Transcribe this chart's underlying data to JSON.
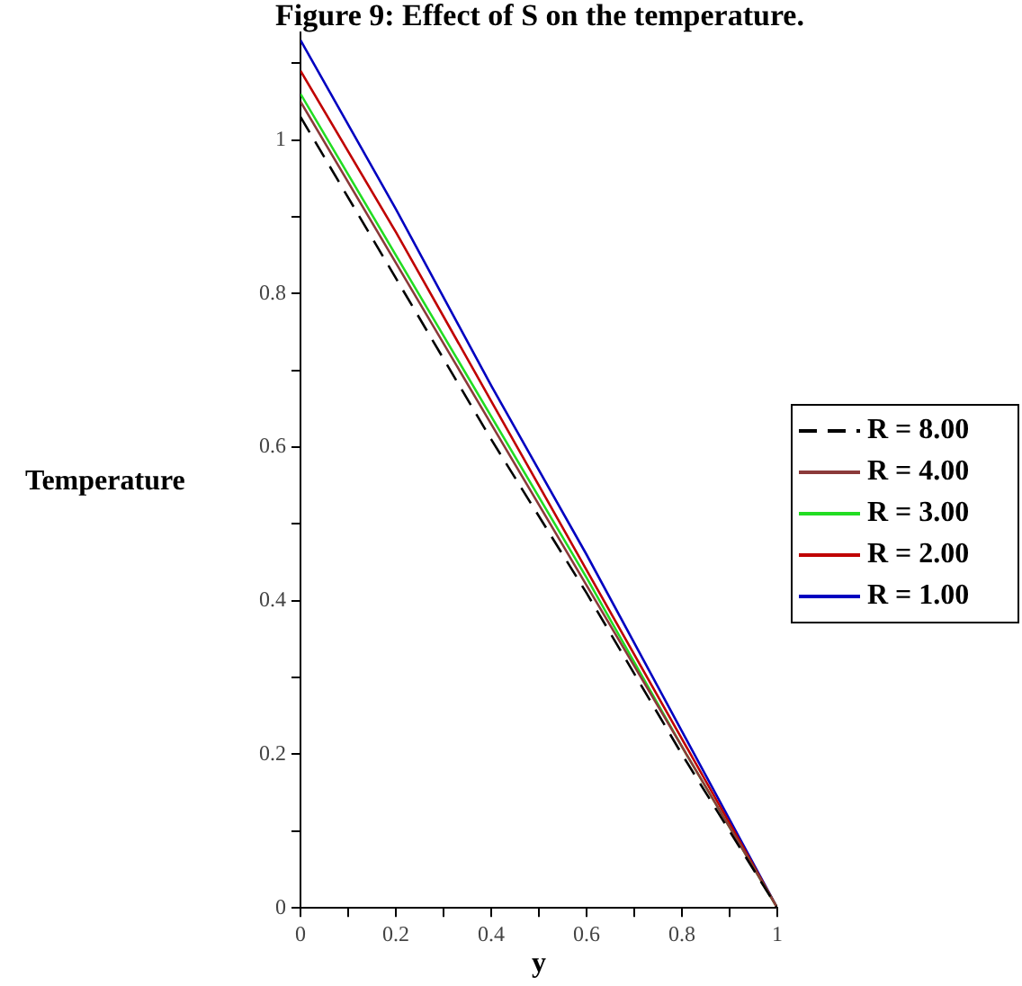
{
  "chart_data": {
    "type": "line",
    "title": "Figure 9: Effect of S on the temperature.",
    "xlabel": "y",
    "ylabel": "Temperature",
    "x": [
      0,
      0.2,
      0.4,
      0.6,
      0.8,
      1
    ],
    "series": [
      {
        "name": "R = 8.00",
        "color": "#000000",
        "line_style": "dashed",
        "values": [
          1.03,
          0.82,
          0.61,
          0.41,
          0.2,
          0
        ]
      },
      {
        "name": "R = 4.00",
        "color": "#8b3a3a",
        "values": [
          1.05,
          0.84,
          0.63,
          0.42,
          0.21,
          0
        ]
      },
      {
        "name": "R = 3.00",
        "color": "#22dd22",
        "values": [
          1.06,
          0.85,
          0.64,
          0.43,
          0.21,
          0
        ]
      },
      {
        "name": "R = 2.00",
        "color": "#c00000",
        "values": [
          1.09,
          0.88,
          0.66,
          0.44,
          0.22,
          0
        ]
      },
      {
        "name": "R = 1.00",
        "color": "#0000c0",
        "values": [
          1.13,
          0.91,
          0.68,
          0.46,
          0.23,
          0
        ]
      }
    ],
    "xlim": [
      0,
      1
    ],
    "ylim": [
      0,
      1.14
    ],
    "xticks": [
      0,
      {
        "value": 0.1,
        "label": null
      },
      0.2,
      {
        "value": 0.3,
        "label": null
      },
      0.4,
      {
        "value": 0.5,
        "label": null
      },
      0.6,
      {
        "value": 0.7,
        "label": null
      },
      0.8,
      {
        "value": 0.9,
        "label": null
      },
      1
    ],
    "yticks": [
      0,
      {
        "value": 0.1,
        "label": null
      },
      0.2,
      {
        "value": 0.3,
        "label": null
      },
      0.4,
      {
        "value": 0.5,
        "label": null
      },
      0.6,
      {
        "value": 0.7,
        "label": null
      },
      0.8,
      {
        "value": 0.9,
        "label": null
      },
      1,
      {
        "value": 1.1,
        "label": null
      }
    ],
    "grid": false,
    "legend": "right",
    "marker": "none",
    "line_style": "solid"
  }
}
